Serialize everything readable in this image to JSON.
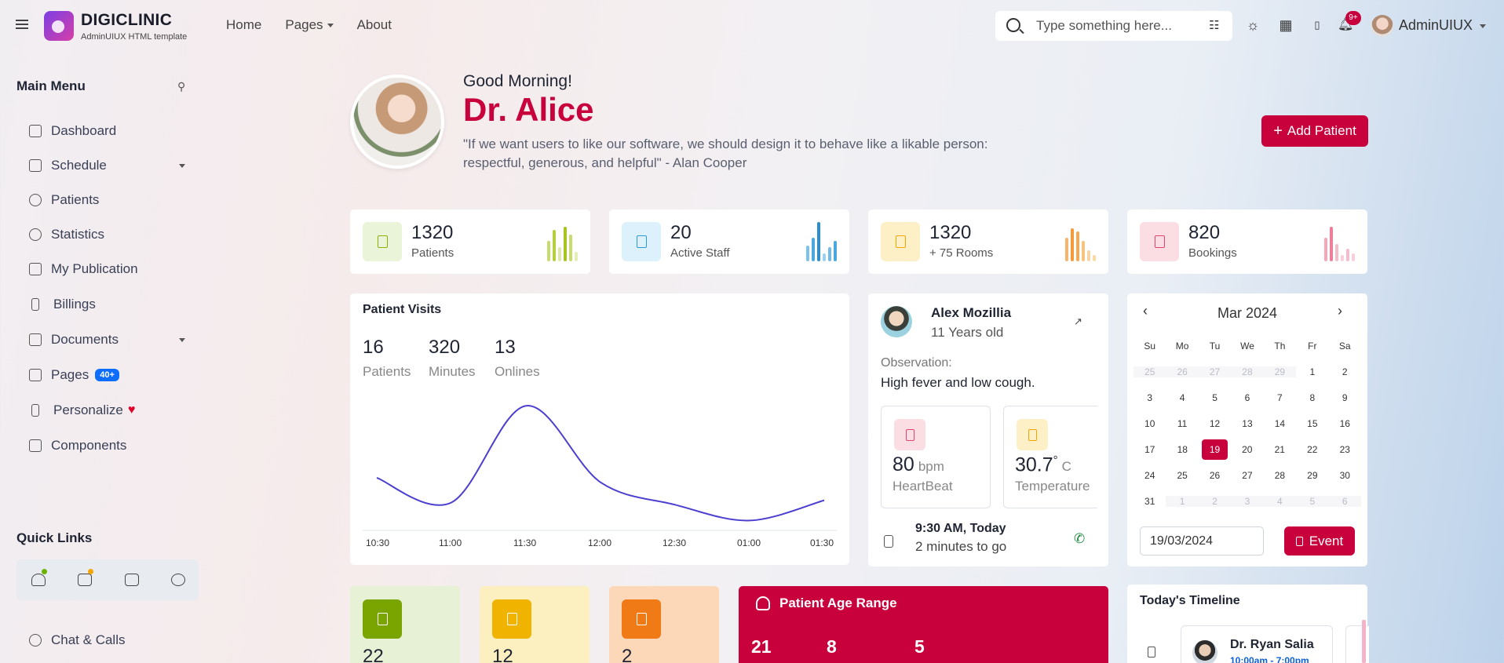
{
  "app": {
    "brand": "DIGICLINIC",
    "tagline": "AdminUIUX HTML template",
    "nav": {
      "home": "Home",
      "pages": "Pages",
      "about": "About"
    },
    "search_placeholder": "Type something here...",
    "notif_count": "9+",
    "user_name": "AdminUIUX",
    "accent": "#c8003c"
  },
  "sidebar": {
    "title": "Main Menu",
    "items": [
      {
        "label": "Dashboard",
        "icon": "grid-icon"
      },
      {
        "label": "Schedule",
        "icon": "calendar-icon"
      },
      {
        "label": "Patients",
        "icon": "users-icon"
      },
      {
        "label": "Statistics",
        "icon": "pie-chart-icon"
      },
      {
        "label": "My Publication",
        "icon": "document-icon"
      },
      {
        "label": "Billings",
        "icon": "bill-icon"
      },
      {
        "label": "Documents",
        "icon": "folder-icon"
      },
      {
        "label": "Pages",
        "icon": "layers-icon",
        "badge": "40+"
      },
      {
        "label": "Personalize",
        "icon": "brush-icon"
      },
      {
        "label": "Components",
        "icon": "cpu-icon"
      }
    ],
    "quick_links_title": "Quick Links",
    "chat_label": "Chat & Calls"
  },
  "hero": {
    "greeting": "Good Morning!",
    "name": "Dr. Alice",
    "quote": "\"If we want users to like our software, we should design it to behave like a likable person: respectful, generous, and helpful\" - Alan Cooper",
    "add_button": "Add Patient"
  },
  "stats": [
    {
      "value": "1320",
      "label": "Patients",
      "color": "#8ab000",
      "bg": "#eaf4d8"
    },
    {
      "value": "20",
      "label": "Active Staff",
      "color": "#2a9bd8",
      "bg": "#dcf1fb"
    },
    {
      "value": "1320",
      "label": "+ 75 Rooms",
      "color": "#f3a600",
      "bg": "#fdf0c7"
    },
    {
      "value": "820",
      "label": "Bookings",
      "color": "#e0456c",
      "bg": "#fbdde4"
    }
  ],
  "patient_visits": {
    "title": "Patient Visits",
    "metrics": [
      {
        "value": "16",
        "label": "Patients"
      },
      {
        "value": "320",
        "label": "Minutes"
      },
      {
        "value": "13",
        "label": "Onlines"
      }
    ],
    "chart_data": {
      "type": "line",
      "x": [
        "10:30",
        "11:00",
        "11:30",
        "12:00",
        "12:30",
        "01:00",
        "01:30"
      ],
      "values": [
        2.2,
        1.1,
        5.4,
        2.0,
        1.0,
        0.3,
        1.2
      ],
      "color": "#4b3fd0"
    }
  },
  "patient": {
    "name": "Alex Mozillia",
    "age": "11 Years old",
    "observation_label": "Observation:",
    "observation": "High fever and low cough.",
    "vitals": [
      {
        "value": "80",
        "unit": "bpm",
        "label": "HeartBeat",
        "color": "#e0456c",
        "bg": "#fbdde4"
      },
      {
        "value": "30.7",
        "sup": "°",
        "unit": "C",
        "label": "Temperature",
        "color": "#f3a600",
        "bg": "#fdf0c7"
      }
    ],
    "appointment_time": "9:30 AM, Today",
    "appointment_sub": "2 minutes to go"
  },
  "calendar": {
    "month": "Mar 2024",
    "dow": [
      "Su",
      "Mo",
      "Tu",
      "We",
      "Th",
      "Fr",
      "Sa"
    ],
    "weeks": [
      [
        "25",
        "26",
        "27",
        "28",
        "29",
        "1",
        "2"
      ],
      [
        "3",
        "4",
        "5",
        "6",
        "7",
        "8",
        "9"
      ],
      [
        "10",
        "11",
        "12",
        "13",
        "14",
        "15",
        "16"
      ],
      [
        "17",
        "18",
        "19",
        "20",
        "21",
        "22",
        "23"
      ],
      [
        "24",
        "25",
        "26",
        "27",
        "28",
        "29",
        "30"
      ],
      [
        "31",
        "1",
        "2",
        "3",
        "4",
        "5",
        "6"
      ]
    ],
    "selected": "19",
    "date_value": "19/03/2024",
    "event_button": "Event"
  },
  "mini_stats": [
    {
      "value": "22",
      "color": "#7aa400",
      "bg": "#e6f1d6"
    },
    {
      "value": "12",
      "color": "#f0b400",
      "bg": "#fdf0c0"
    },
    {
      "value": "2",
      "color": "#f07a16",
      "bg": "#fdd8b8"
    }
  ],
  "age_range": {
    "title": "Patient Age Range",
    "values": [
      "21",
      "8",
      "5"
    ]
  },
  "timeline": {
    "title": "Today's Timeline",
    "doctor": "Dr. Ryan Salia",
    "time": "10:00am - 7:00pm"
  }
}
